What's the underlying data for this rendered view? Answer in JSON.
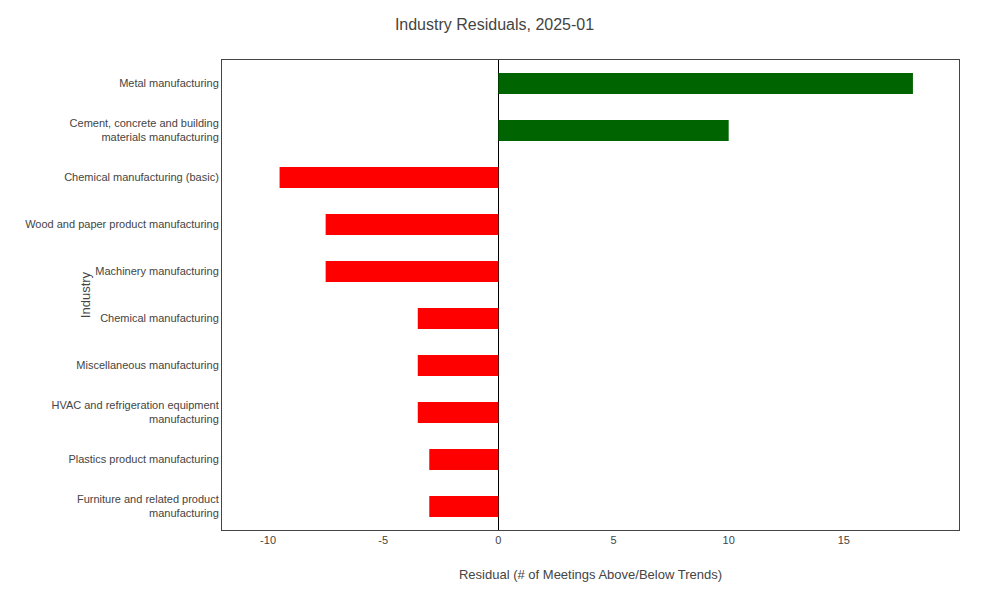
{
  "chart_data": {
    "type": "bar",
    "orientation": "horizontal",
    "title": "Industry Residuals, 2025-01",
    "xlabel": "Residual (# of Meetings Above/Below Trends)",
    "ylabel": "Industry",
    "categories": [
      "Furniture and related product\nmanufacturing",
      "Plastics product manufacturing",
      "HVAC and refrigeration equipment\nmanufacturing",
      "Miscellaneous manufacturing",
      "Chemical manufacturing",
      "Machinery manufacturing",
      "Wood and paper product manufacturing",
      "Chemical manufacturing (basic)",
      "Cement, concrete and building\nmaterials manufacturing",
      "Metal manufacturing"
    ],
    "values": [
      -3.0,
      -3.0,
      -3.5,
      -3.5,
      -3.5,
      -7.5,
      -7.5,
      -9.5,
      10.0,
      18.0
    ],
    "colors": [
      "red",
      "red",
      "red",
      "red",
      "red",
      "red",
      "red",
      "red",
      "#006400",
      "#006400"
    ],
    "xlim": [
      -12,
      20
    ],
    "xticks": [
      -10,
      -5,
      0,
      5,
      10,
      15
    ],
    "grid": false
  }
}
